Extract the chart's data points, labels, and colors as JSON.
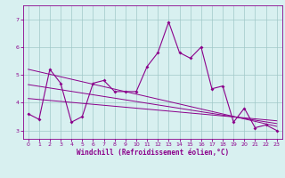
{
  "title": "",
  "xlabel": "Windchill (Refroidissement éolien,°C)",
  "background_color": "#d8f0f0",
  "line_color": "#8b008b",
  "grid_color": "#a0c8c8",
  "x_data": [
    0,
    1,
    2,
    3,
    4,
    5,
    6,
    7,
    8,
    9,
    10,
    11,
    12,
    13,
    14,
    15,
    16,
    17,
    18,
    19,
    20,
    21,
    22,
    23
  ],
  "y_data": [
    3.6,
    3.4,
    5.2,
    4.7,
    3.3,
    3.5,
    4.7,
    4.8,
    4.4,
    4.4,
    4.4,
    5.3,
    5.8,
    6.9,
    5.8,
    5.6,
    6.0,
    4.5,
    4.6,
    3.3,
    3.8,
    3.1,
    3.2,
    3.0
  ],
  "trend1_x": [
    0,
    23
  ],
  "trend1_y": [
    5.2,
    3.15
  ],
  "trend2_x": [
    0,
    23
  ],
  "trend2_y": [
    4.65,
    3.25
  ],
  "trend3_x": [
    0,
    23
  ],
  "trend3_y": [
    4.15,
    3.35
  ],
  "ylim": [
    2.7,
    7.5
  ],
  "xlim": [
    -0.5,
    23.5
  ],
  "yticks": [
    3,
    4,
    5,
    6,
    7
  ],
  "xticks": [
    0,
    1,
    2,
    3,
    4,
    5,
    6,
    7,
    8,
    9,
    10,
    11,
    12,
    13,
    14,
    15,
    16,
    17,
    18,
    19,
    20,
    21,
    22,
    23
  ]
}
